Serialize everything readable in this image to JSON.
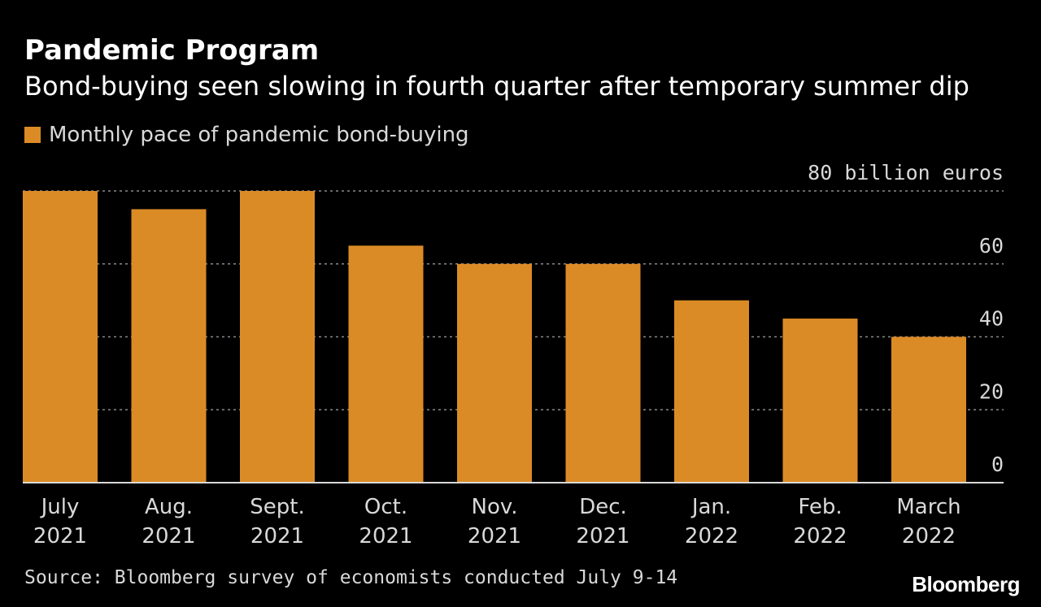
{
  "header": {
    "title": "Pandemic Program",
    "subtitle": "Bond-buying seen slowing in fourth quarter after temporary summer dip"
  },
  "legend": {
    "label": "Monthly pace of pandemic bond-buying"
  },
  "footer": {
    "source": "Source: Bloomberg survey of economists conducted July 9-14",
    "brand": "Bloomberg"
  },
  "colors": {
    "bar": "#db8b26",
    "background": "#000000",
    "gridline": "#8a8a8a",
    "baseline": "#d9d9d9",
    "text": "#d9d9d9"
  },
  "chart_data": {
    "type": "bar",
    "categories": [
      [
        "July",
        "2021"
      ],
      [
        "Aug.",
        "2021"
      ],
      [
        "Sept.",
        "2021"
      ],
      [
        "Oct.",
        "2021"
      ],
      [
        "Nov.",
        "2021"
      ],
      [
        "Dec.",
        "2021"
      ],
      [
        "Jan.",
        "2022"
      ],
      [
        "Feb.",
        "2022"
      ],
      [
        "March",
        "2022"
      ]
    ],
    "series": [
      {
        "name": "Monthly pace of pandemic bond-buying",
        "values": [
          80,
          75,
          80,
          65,
          60,
          60,
          50,
          45,
          40
        ]
      }
    ],
    "ylim": [
      0,
      80
    ],
    "yticks": [
      0,
      20,
      40,
      60,
      80
    ],
    "ytick_labels": [
      "0",
      "20",
      "40",
      "60",
      "80 billion euros"
    ],
    "y_axis_position": "right",
    "grid": "horizontal-dotted",
    "legend_position": "top-left"
  }
}
